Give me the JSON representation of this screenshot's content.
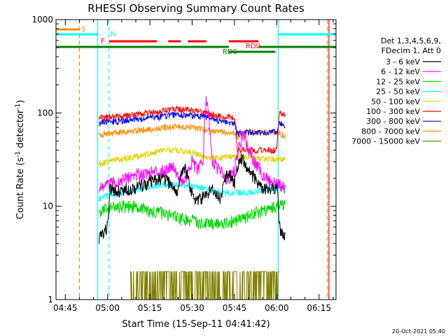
{
  "chart_data": {
    "type": "line",
    "title": "RHESSI Observing Summary Count Rates",
    "xlabel": "Start Time (15-Sep-11 04:41:42)",
    "ylabel": "Count Rate (s",
    "ylabel_sup": "-1",
    "ylabel_tail": " detector",
    "ylabel_tail_sup": "-1",
    "ylabel_close": ")",
    "timestamp": "20-Oct-2021 05:40",
    "y_scale": "log",
    "xlim": [
      "04:41:42",
      "06:21:00"
    ],
    "ylim": [
      1,
      1000
    ],
    "x_ticks": [
      "04:45",
      "05:00",
      "05:15",
      "05:30",
      "05:45",
      "06:00",
      "06:15"
    ],
    "x_tick_minutes": [
      225,
      240,
      255,
      270,
      285,
      300,
      315
    ],
    "y_ticks": [
      "1",
      "10",
      "100",
      "1000"
    ],
    "y_tick_values": [
      1,
      10,
      100,
      1000
    ],
    "legend_header": [
      "Det 1,3,4,5,6,9,",
      "FDecim 1, Att 0"
    ],
    "series": [
      {
        "name": "3 - 6 keV",
        "color": "#000000",
        "x": [
          237,
          238,
          240,
          241,
          242,
          245,
          250,
          255,
          260,
          265,
          267,
          270,
          272,
          275,
          277,
          280,
          283,
          285,
          287,
          290,
          295,
          300,
          301,
          302,
          303
        ],
        "values": [
          4.5,
          5,
          6,
          16,
          14,
          15,
          16,
          18,
          20,
          14,
          28,
          13,
          12,
          13,
          16,
          12,
          24,
          17,
          35,
          24,
          15,
          16,
          6,
          5,
          4.5
        ]
      },
      {
        "name": "6 - 12 keV",
        "color": "#ff00ff",
        "x": [
          237,
          238,
          240,
          245,
          250,
          255,
          260,
          263,
          266,
          268,
          270,
          272,
          274,
          275,
          277,
          279,
          281,
          283,
          285,
          286,
          288,
          290,
          292,
          295,
          298,
          300,
          301,
          303
        ],
        "values": [
          15,
          16,
          17,
          19,
          22,
          23,
          24,
          28,
          18,
          20,
          30,
          24,
          32,
          140,
          30,
          26,
          22,
          20,
          24,
          35,
          60,
          40,
          30,
          22,
          18,
          18,
          17,
          16
        ]
      },
      {
        "name": "12 - 25 keV",
        "color": "#00d800",
        "x": [
          237,
          240,
          245,
          250,
          255,
          260,
          265,
          270,
          275,
          280,
          285,
          290,
          295,
          300,
          301,
          303
        ],
        "values": [
          9,
          9.5,
          10,
          10,
          9,
          8.5,
          7.5,
          7,
          6.5,
          6.5,
          7,
          8,
          9,
          10,
          11,
          10
        ]
      },
      {
        "name": "25 - 50 keV",
        "color": "#00ffff",
        "x": [
          237,
          240,
          245,
          250,
          255,
          260,
          265,
          270,
          275,
          280,
          285,
          290,
          295,
          300,
          301,
          303
        ],
        "values": [
          12,
          13,
          14,
          15,
          16,
          17,
          17,
          16.5,
          15,
          14,
          14,
          14,
          15,
          16,
          16,
          16
        ]
      },
      {
        "name": "50 - 100 keV",
        "color": "#e6d200",
        "x": [
          237,
          240,
          245,
          250,
          255,
          260,
          265,
          270,
          275,
          280,
          285,
          290,
          295,
          300,
          301,
          303
        ],
        "values": [
          28,
          30,
          32,
          34,
          37,
          40,
          40,
          37,
          34,
          33,
          34,
          33,
          32,
          32,
          32,
          32
        ]
      },
      {
        "name": "100 - 300 keV",
        "color": "#ff0000",
        "x": [
          237,
          240,
          245,
          250,
          255,
          260,
          265,
          270,
          275,
          280,
          285,
          286,
          290,
          295,
          300,
          301,
          302,
          303
        ],
        "values": [
          88,
          90,
          92,
          96,
          100,
          106,
          110,
          107,
          100,
          92,
          90,
          40,
          40,
          40,
          40,
          100,
          100,
          95
        ]
      },
      {
        "name": "300 - 800 keV",
        "color": "#0000ff",
        "x": [
          237,
          240,
          245,
          250,
          255,
          260,
          265,
          270,
          275,
          280,
          285,
          286,
          290,
          295,
          300,
          301,
          302,
          303
        ],
        "values": [
          78,
          80,
          82,
          86,
          88,
          92,
          96,
          94,
          90,
          82,
          78,
          60,
          62,
          62,
          62,
          76,
          76,
          70
        ]
      },
      {
        "name": "800 - 7000 keV",
        "color": "#ff8c00",
        "x": [
          237,
          240,
          245,
          250,
          255,
          260,
          265,
          270,
          275,
          280,
          285,
          286,
          288,
          290,
          295,
          300,
          301,
          303
        ],
        "values": [
          58,
          60,
          62,
          64,
          67,
          70,
          72,
          70,
          66,
          62,
          60,
          55,
          60,
          62,
          62,
          62,
          60,
          56
        ]
      },
      {
        "name": "7000 - 15000 keV",
        "color": "#808000",
        "x": [
          248,
          249,
          250,
          251,
          252,
          253,
          254,
          255,
          256,
          284,
          285,
          286,
          287,
          288,
          289,
          290,
          291,
          292,
          293,
          294,
          295,
          296,
          297,
          298,
          299,
          300,
          301
        ],
        "values": [
          1.5,
          1,
          2,
          1.5,
          1,
          2,
          1.5,
          2,
          1,
          1.5,
          2,
          1,
          2,
          1.5,
          2,
          1,
          2,
          2,
          1.5,
          1,
          2,
          1.5,
          2,
          1,
          2,
          1.5,
          1
        ]
      }
    ],
    "flags": [
      {
        "label": "S",
        "color": "#ff8c00",
        "segments": [
          [
            221.7,
            230
          ]
        ]
      },
      {
        "label": "N",
        "color": "#00ffff",
        "segments": [
          [
            221.7,
            236.5
          ],
          [
            300.5,
            321
          ]
        ]
      },
      {
        "label": "F",
        "color": "#ff0000",
        "segments": [
          [
            240.5,
            257.5
          ],
          [
            261.5,
            266
          ],
          [
            268.5,
            275
          ],
          [
            283,
            293.5
          ]
        ]
      },
      {
        "label": "RD0",
        "color": "#ff0000",
        "segments": []
      },
      {
        "label": "",
        "color": "#008000",
        "segments": [
          [
            221.7,
            283
          ],
          [
            293.5,
            321
          ]
        ]
      },
      {
        "label": "RD6",
        "color": "#008000",
        "segments": [
          [
            283,
            299.5
          ]
        ]
      }
    ],
    "vertical_lines": [
      {
        "color": "#ff8c00",
        "style": "dashed",
        "x": 230
      },
      {
        "color": "#00ffff",
        "style": "solid",
        "x": 236.5
      },
      {
        "color": "#00ffff",
        "style": "dashed",
        "x": 240.5
      },
      {
        "color": "#00ffff",
        "style": "solid",
        "x": 300.5
      },
      {
        "color": "#ff8c00",
        "style": "dashed",
        "x": 318
      },
      {
        "color": "#ff0000",
        "style": "solid",
        "x": 318.5
      }
    ],
    "grid": false,
    "legend_position": "right"
  }
}
